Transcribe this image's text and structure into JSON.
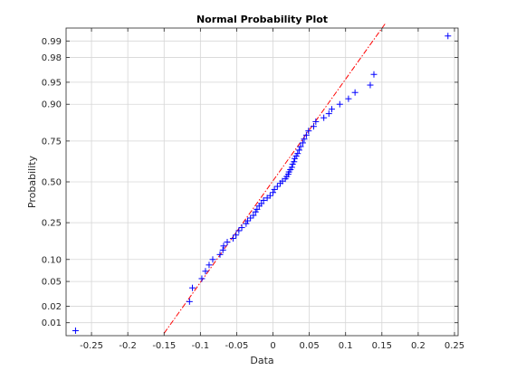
{
  "chart_data": {
    "type": "scatter",
    "title": "Normal Probability Plot",
    "xlabel": "Data",
    "ylabel": "Probability",
    "xlim": [
      -0.285,
      0.255
    ],
    "ylim_z": [
      -2.54,
      2.54
    ],
    "x_ticks": [
      -0.25,
      -0.2,
      -0.15,
      -0.1,
      -0.05,
      0,
      0.05,
      0.1,
      0.15,
      0.2,
      0.25
    ],
    "x_tick_labels": [
      "-0.25",
      "-0.2",
      "-0.15",
      "-0.1",
      "-0.05",
      "0",
      "0.05",
      "0.1",
      "0.15",
      "0.2",
      "0.25"
    ],
    "y_ticks_prob": [
      0.01,
      0.02,
      0.05,
      0.1,
      0.25,
      0.5,
      0.75,
      0.9,
      0.95,
      0.98,
      0.99
    ],
    "y_tick_labels": [
      "0.01",
      "0.02",
      "0.05",
      "0.10",
      "0.25",
      "0.50",
      "0.75",
      "0.90",
      "0.95",
      "0.98",
      "0.99"
    ],
    "grid": true,
    "marker": "+",
    "marker_color": "#0000ff",
    "reference_line_color": "#ff0000",
    "reference_line_style": "dash-dot",
    "series": [
      {
        "x": [
          -0.272,
          -0.115,
          -0.111,
          -0.098,
          -0.093,
          -0.088,
          -0.083,
          -0.073,
          -0.069,
          -0.068,
          -0.063,
          -0.055,
          -0.051,
          -0.047,
          -0.043,
          -0.037,
          -0.035,
          -0.031,
          -0.027,
          -0.024,
          -0.022,
          -0.019,
          -0.016,
          -0.013,
          -0.008,
          -0.004,
          0.0,
          0.002,
          0.006,
          0.01,
          0.013,
          0.017,
          0.019,
          0.021,
          0.022,
          0.024,
          0.026,
          0.027,
          0.029,
          0.03,
          0.032,
          0.034,
          0.036,
          0.038,
          0.041,
          0.043,
          0.046,
          0.049,
          0.056,
          0.059,
          0.07,
          0.077,
          0.081,
          0.092,
          0.104,
          0.113,
          0.134,
          0.139,
          0.241
        ],
        "p": [
          0.007,
          0.024,
          0.04,
          0.055,
          0.07,
          0.085,
          0.1,
          0.115,
          0.13,
          0.145,
          0.16,
          0.175,
          0.19,
          0.21,
          0.225,
          0.245,
          0.26,
          0.275,
          0.29,
          0.31,
          0.325,
          0.345,
          0.36,
          0.38,
          0.395,
          0.41,
          0.43,
          0.45,
          0.47,
          0.49,
          0.505,
          0.52,
          0.535,
          0.55,
          0.565,
          0.58,
          0.595,
          0.615,
          0.63,
          0.65,
          0.665,
          0.68,
          0.7,
          0.72,
          0.74,
          0.76,
          0.78,
          0.8,
          0.82,
          0.84,
          0.855,
          0.87,
          0.885,
          0.9,
          0.915,
          0.93,
          0.945,
          0.962,
          0.992
        ]
      }
    ],
    "reference_line": {
      "x1": -0.15,
      "p1": 0.0062,
      "x2": 0.155,
      "p2": 0.9956
    }
  }
}
